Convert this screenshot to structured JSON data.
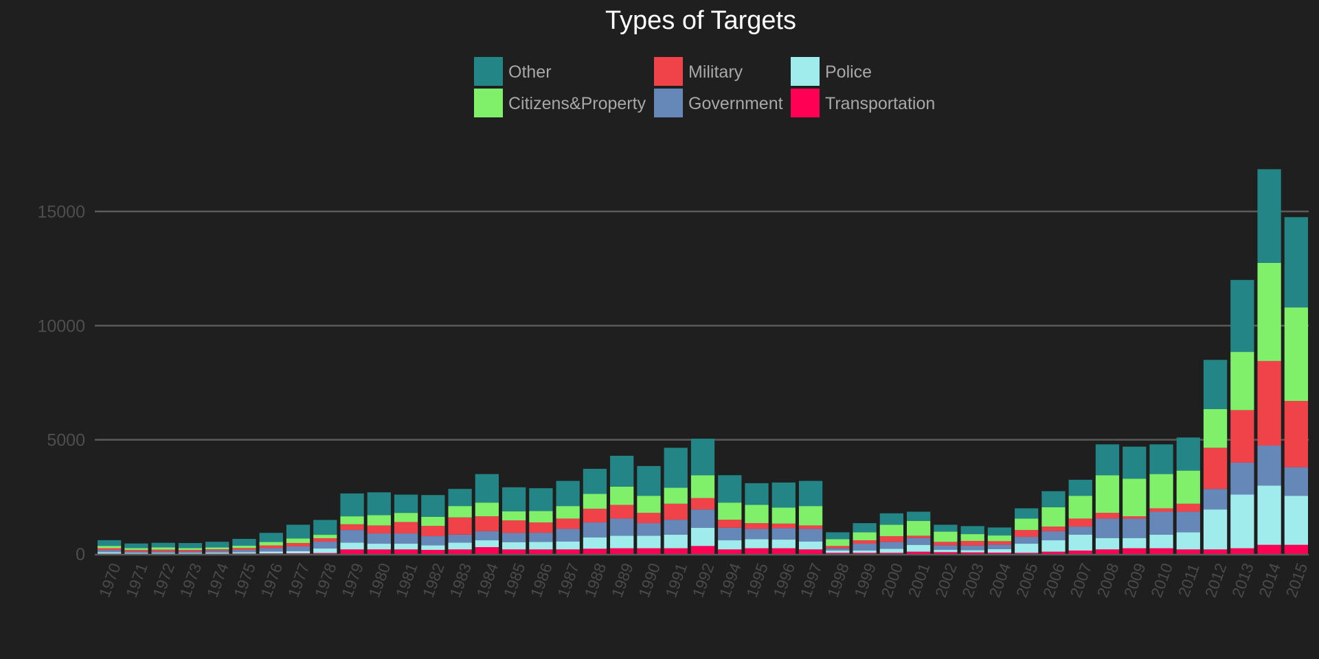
{
  "chart_data": {
    "type": "bar",
    "stacked": true,
    "title": "Types of Targets",
    "xlabel": "",
    "ylabel": "",
    "ylim": [
      0,
      17000
    ],
    "yticks": [
      0,
      5000,
      10000,
      15000
    ],
    "grid": true,
    "legend_position": "top-center",
    "categories": [
      "1970",
      "1971",
      "1972",
      "1973",
      "1974",
      "1975",
      "1976",
      "1977",
      "1978",
      "1979",
      "1980",
      "1981",
      "1982",
      "1983",
      "1984",
      "1985",
      "1986",
      "1987",
      "1988",
      "1989",
      "1990",
      "1991",
      "1992",
      "1994",
      "1995",
      "1996",
      "1997",
      "1998",
      "1999",
      "2000",
      "2001",
      "2002",
      "2003",
      "2004",
      "2005",
      "2006",
      "2007",
      "2008",
      "2009",
      "2010",
      "2011",
      "2012",
      "2013",
      "2014",
      "2015"
    ],
    "series": [
      {
        "name": "Transportation",
        "color": "#ff0054",
        "values": [
          15,
          10,
          10,
          10,
          15,
          20,
          25,
          30,
          40,
          200,
          200,
          200,
          180,
          200,
          300,
          200,
          200,
          200,
          230,
          250,
          250,
          250,
          350,
          200,
          250,
          250,
          200,
          50,
          50,
          50,
          100,
          80,
          70,
          60,
          50,
          100,
          150,
          200,
          250,
          250,
          200,
          200,
          250,
          400,
          400
        ]
      },
      {
        "name": "Police",
        "color": "#a0ecec",
        "values": [
          60,
          40,
          40,
          40,
          50,
          60,
          80,
          100,
          200,
          300,
          250,
          250,
          200,
          300,
          300,
          320,
          330,
          350,
          500,
          550,
          550,
          600,
          800,
          400,
          400,
          380,
          350,
          100,
          100,
          180,
          300,
          100,
          100,
          150,
          400,
          500,
          700,
          500,
          450,
          600,
          750,
          1750,
          2350,
          2600,
          2150
        ]
      },
      {
        "name": "Government",
        "color": "#6688b8",
        "values": [
          100,
          60,
          60,
          60,
          80,
          100,
          150,
          200,
          300,
          550,
          450,
          450,
          400,
          350,
          400,
          400,
          400,
          550,
          650,
          750,
          550,
          650,
          800,
          550,
          450,
          500,
          550,
          100,
          300,
          300,
          300,
          200,
          200,
          200,
          300,
          400,
          350,
          850,
          850,
          1000,
          900,
          900,
          1400,
          1750,
          1250
        ]
      },
      {
        "name": "Military",
        "color": "#ef4349",
        "values": [
          80,
          70,
          80,
          70,
          60,
          80,
          120,
          150,
          150,
          250,
          350,
          500,
          450,
          750,
          650,
          550,
          450,
          450,
          600,
          600,
          450,
          700,
          500,
          350,
          250,
          200,
          150,
          100,
          150,
          250,
          100,
          150,
          200,
          150,
          300,
          200,
          350,
          250,
          100,
          150,
          350,
          1800,
          2300,
          3700,
          2900
        ]
      },
      {
        "name": "Citizens&Property",
        "color": "#80ef6a",
        "values": [
          100,
          80,
          100,
          80,
          80,
          100,
          150,
          200,
          150,
          350,
          450,
          400,
          400,
          500,
          600,
          400,
          500,
          550,
          650,
          800,
          750,
          700,
          1000,
          750,
          800,
          700,
          850,
          300,
          350,
          500,
          650,
          450,
          300,
          250,
          500,
          850,
          1000,
          1650,
          1650,
          1500,
          1450,
          1700,
          2550,
          4300,
          4100
        ]
      },
      {
        "name": "Other",
        "color": "#238585",
        "values": [
          250,
          200,
          200,
          220,
          250,
          300,
          400,
          600,
          650,
          1000,
          1000,
          800,
          950,
          750,
          1250,
          1050,
          1000,
          1100,
          1100,
          1350,
          1300,
          1750,
          1600,
          1200,
          950,
          1100,
          1100,
          300,
          400,
          500,
          400,
          300,
          350,
          350,
          450,
          700,
          700,
          1350,
          1400,
          1300,
          1450,
          2150,
          3150,
          4100,
          3950
        ]
      }
    ]
  }
}
